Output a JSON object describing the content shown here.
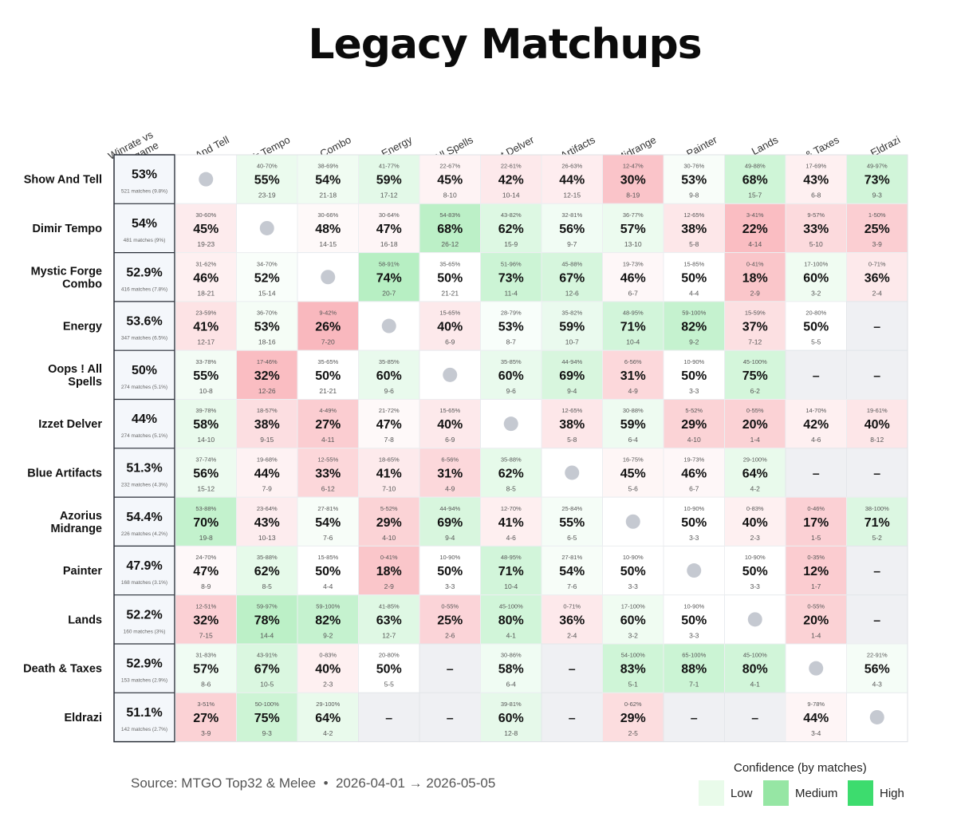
{
  "title": "Legacy Matchups",
  "source": "Source: MTGO Top32 & Melee  •  2026-04-01 → 2026-05-05",
  "legend": {
    "title": "Confidence (by matches)",
    "items": [
      {
        "label": "Low",
        "color": "#e9fbea"
      },
      {
        "label": "Medium",
        "color": "#96e6a4"
      },
      {
        "label": "High",
        "color": "#3ddc6e"
      }
    ]
  },
  "chart_data": {
    "type": "heatmap",
    "first_column_header": "Winrate vs Metagame",
    "columns": [
      "Show And Tell",
      "Dimir Tempo",
      "Mystic Forge Combo",
      "Energy",
      "Oops ! All Spells",
      "Izzet Delver",
      "Blue Artifacts",
      "Azorius Midrange",
      "Painter",
      "Lands",
      "Death & Taxes",
      "Eldrazi"
    ],
    "rows": [
      {
        "name": "Show And Tell",
        "winrate": "53%",
        "matches": "521 matches (9.8%)",
        "cells": [
          null,
          {
            "ci": "40-70%",
            "wr": "55%",
            "rec": "23-19"
          },
          {
            "ci": "38-69%",
            "wr": "54%",
            "rec": "21-18"
          },
          {
            "ci": "41-77%",
            "wr": "59%",
            "rec": "17-12"
          },
          {
            "ci": "22-67%",
            "wr": "45%",
            "rec": "8-10"
          },
          {
            "ci": "22-61%",
            "wr": "42%",
            "rec": "10-14"
          },
          {
            "ci": "26-63%",
            "wr": "44%",
            "rec": "12-15"
          },
          {
            "ci": "12-47%",
            "wr": "30%",
            "rec": "8-19"
          },
          {
            "ci": "30-76%",
            "wr": "53%",
            "rec": "9-8"
          },
          {
            "ci": "49-88%",
            "wr": "68%",
            "rec": "15-7"
          },
          {
            "ci": "17-69%",
            "wr": "43%",
            "rec": "6-8"
          },
          {
            "ci": "49-97%",
            "wr": "73%",
            "rec": "9-3"
          }
        ]
      },
      {
        "name": "Dimir Tempo",
        "winrate": "54%",
        "matches": "481 matches (9%)",
        "cells": [
          {
            "ci": "30-60%",
            "wr": "45%",
            "rec": "19-23"
          },
          null,
          {
            "ci": "30-66%",
            "wr": "48%",
            "rec": "14-15"
          },
          {
            "ci": "30-64%",
            "wr": "47%",
            "rec": "16-18"
          },
          {
            "ci": "54-83%",
            "wr": "68%",
            "rec": "26-12"
          },
          {
            "ci": "43-82%",
            "wr": "62%",
            "rec": "15-9"
          },
          {
            "ci": "32-81%",
            "wr": "56%",
            "rec": "9-7"
          },
          {
            "ci": "36-77%",
            "wr": "57%",
            "rec": "13-10"
          },
          {
            "ci": "12-65%",
            "wr": "38%",
            "rec": "5-8"
          },
          {
            "ci": "3-41%",
            "wr": "22%",
            "rec": "4-14"
          },
          {
            "ci": "9-57%",
            "wr": "33%",
            "rec": "5-10"
          },
          {
            "ci": "1-50%",
            "wr": "25%",
            "rec": "3-9"
          }
        ]
      },
      {
        "name": "Mystic Forge Combo",
        "winrate": "52.9%",
        "matches": "416 matches (7.8%)",
        "cells": [
          {
            "ci": "31-62%",
            "wr": "46%",
            "rec": "18-21"
          },
          {
            "ci": "34-70%",
            "wr": "52%",
            "rec": "15-14"
          },
          null,
          {
            "ci": "58-91%",
            "wr": "74%",
            "rec": "20-7"
          },
          {
            "ci": "35-65%",
            "wr": "50%",
            "rec": "21-21"
          },
          {
            "ci": "51-96%",
            "wr": "73%",
            "rec": "11-4"
          },
          {
            "ci": "45-88%",
            "wr": "67%",
            "rec": "12-6"
          },
          {
            "ci": "19-73%",
            "wr": "46%",
            "rec": "6-7"
          },
          {
            "ci": "15-85%",
            "wr": "50%",
            "rec": "4-4"
          },
          {
            "ci": "0-41%",
            "wr": "18%",
            "rec": "2-9"
          },
          {
            "ci": "17-100%",
            "wr": "60%",
            "rec": "3-2"
          },
          {
            "ci": "0-71%",
            "wr": "36%",
            "rec": "2-4"
          }
        ]
      },
      {
        "name": "Energy",
        "winrate": "53.6%",
        "matches": "347 matches (6.5%)",
        "cells": [
          {
            "ci": "23-59%",
            "wr": "41%",
            "rec": "12-17"
          },
          {
            "ci": "36-70%",
            "wr": "53%",
            "rec": "18-16"
          },
          {
            "ci": "9-42%",
            "wr": "26%",
            "rec": "7-20"
          },
          null,
          {
            "ci": "15-65%",
            "wr": "40%",
            "rec": "6-9"
          },
          {
            "ci": "28-79%",
            "wr": "53%",
            "rec": "8-7"
          },
          {
            "ci": "35-82%",
            "wr": "59%",
            "rec": "10-7"
          },
          {
            "ci": "48-95%",
            "wr": "71%",
            "rec": "10-4"
          },
          {
            "ci": "59-100%",
            "wr": "82%",
            "rec": "9-2"
          },
          {
            "ci": "15-59%",
            "wr": "37%",
            "rec": "7-12"
          },
          {
            "ci": "20-80%",
            "wr": "50%",
            "rec": "5-5"
          },
          "na"
        ]
      },
      {
        "name": "Oops ! All Spells",
        "winrate": "50%",
        "matches": "274 matches (5.1%)",
        "cells": [
          {
            "ci": "33-78%",
            "wr": "55%",
            "rec": "10-8"
          },
          {
            "ci": "17-46%",
            "wr": "32%",
            "rec": "12-26"
          },
          {
            "ci": "35-65%",
            "wr": "50%",
            "rec": "21-21"
          },
          {
            "ci": "35-85%",
            "wr": "60%",
            "rec": "9-6"
          },
          null,
          {
            "ci": "35-85%",
            "wr": "60%",
            "rec": "9-6"
          },
          {
            "ci": "44-94%",
            "wr": "69%",
            "rec": "9-4"
          },
          {
            "ci": "6-56%",
            "wr": "31%",
            "rec": "4-9"
          },
          {
            "ci": "10-90%",
            "wr": "50%",
            "rec": "3-3"
          },
          {
            "ci": "45-100%",
            "wr": "75%",
            "rec": "6-2"
          },
          "na",
          "na"
        ]
      },
      {
        "name": "Izzet Delver",
        "winrate": "44%",
        "matches": "274 matches (5.1%)",
        "cells": [
          {
            "ci": "39-78%",
            "wr": "58%",
            "rec": "14-10"
          },
          {
            "ci": "18-57%",
            "wr": "38%",
            "rec": "9-15"
          },
          {
            "ci": "4-49%",
            "wr": "27%",
            "rec": "4-11"
          },
          {
            "ci": "21-72%",
            "wr": "47%",
            "rec": "7-8"
          },
          {
            "ci": "15-65%",
            "wr": "40%",
            "rec": "6-9"
          },
          null,
          {
            "ci": "12-65%",
            "wr": "38%",
            "rec": "5-8"
          },
          {
            "ci": "30-88%",
            "wr": "59%",
            "rec": "6-4"
          },
          {
            "ci": "5-52%",
            "wr": "29%",
            "rec": "4-10"
          },
          {
            "ci": "0-55%",
            "wr": "20%",
            "rec": "1-4"
          },
          {
            "ci": "14-70%",
            "wr": "42%",
            "rec": "4-6"
          },
          {
            "ci": "19-61%",
            "wr": "40%",
            "rec": "8-12"
          }
        ]
      },
      {
        "name": "Blue Artifacts",
        "winrate": "51.3%",
        "matches": "232 matches (4.3%)",
        "cells": [
          {
            "ci": "37-74%",
            "wr": "56%",
            "rec": "15-12"
          },
          {
            "ci": "19-68%",
            "wr": "44%",
            "rec": "7-9"
          },
          {
            "ci": "12-55%",
            "wr": "33%",
            "rec": "6-12"
          },
          {
            "ci": "18-65%",
            "wr": "41%",
            "rec": "7-10"
          },
          {
            "ci": "6-56%",
            "wr": "31%",
            "rec": "4-9"
          },
          {
            "ci": "35-88%",
            "wr": "62%",
            "rec": "8-5"
          },
          null,
          {
            "ci": "16-75%",
            "wr": "45%",
            "rec": "5-6"
          },
          {
            "ci": "19-73%",
            "wr": "46%",
            "rec": "6-7"
          },
          {
            "ci": "29-100%",
            "wr": "64%",
            "rec": "4-2"
          },
          "na",
          "na"
        ]
      },
      {
        "name": "Azorius Midrange",
        "winrate": "54.4%",
        "matches": "226 matches (4.2%)",
        "cells": [
          {
            "ci": "53-88%",
            "wr": "70%",
            "rec": "19-8"
          },
          {
            "ci": "23-64%",
            "wr": "43%",
            "rec": "10-13"
          },
          {
            "ci": "27-81%",
            "wr": "54%",
            "rec": "7-6"
          },
          {
            "ci": "5-52%",
            "wr": "29%",
            "rec": "4-10"
          },
          {
            "ci": "44-94%",
            "wr": "69%",
            "rec": "9-4"
          },
          {
            "ci": "12-70%",
            "wr": "41%",
            "rec": "4-6"
          },
          {
            "ci": "25-84%",
            "wr": "55%",
            "rec": "6-5"
          },
          null,
          {
            "ci": "10-90%",
            "wr": "50%",
            "rec": "3-3"
          },
          {
            "ci": "0-83%",
            "wr": "40%",
            "rec": "2-3"
          },
          {
            "ci": "0-46%",
            "wr": "17%",
            "rec": "1-5"
          },
          {
            "ci": "38-100%",
            "wr": "71%",
            "rec": "5-2"
          }
        ]
      },
      {
        "name": "Painter",
        "winrate": "47.9%",
        "matches": "168 matches (3.1%)",
        "cells": [
          {
            "ci": "24-70%",
            "wr": "47%",
            "rec": "8-9"
          },
          {
            "ci": "35-88%",
            "wr": "62%",
            "rec": "8-5"
          },
          {
            "ci": "15-85%",
            "wr": "50%",
            "rec": "4-4"
          },
          {
            "ci": "0-41%",
            "wr": "18%",
            "rec": "2-9"
          },
          {
            "ci": "10-90%",
            "wr": "50%",
            "rec": "3-3"
          },
          {
            "ci": "48-95%",
            "wr": "71%",
            "rec": "10-4"
          },
          {
            "ci": "27-81%",
            "wr": "54%",
            "rec": "7-6"
          },
          {
            "ci": "10-90%",
            "wr": "50%",
            "rec": "3-3"
          },
          null,
          {
            "ci": "10-90%",
            "wr": "50%",
            "rec": "3-3"
          },
          {
            "ci": "0-35%",
            "wr": "12%",
            "rec": "1-7"
          },
          "na"
        ]
      },
      {
        "name": "Lands",
        "winrate": "52.2%",
        "matches": "160 matches (3%)",
        "cells": [
          {
            "ci": "12-51%",
            "wr": "32%",
            "rec": "7-15"
          },
          {
            "ci": "59-97%",
            "wr": "78%",
            "rec": "14-4"
          },
          {
            "ci": "59-100%",
            "wr": "82%",
            "rec": "9-2"
          },
          {
            "ci": "41-85%",
            "wr": "63%",
            "rec": "12-7"
          },
          {
            "ci": "0-55%",
            "wr": "25%",
            "rec": "2-6"
          },
          {
            "ci": "45-100%",
            "wr": "80%",
            "rec": "4-1"
          },
          {
            "ci": "0-71%",
            "wr": "36%",
            "rec": "2-4"
          },
          {
            "ci": "17-100%",
            "wr": "60%",
            "rec": "3-2"
          },
          {
            "ci": "10-90%",
            "wr": "50%",
            "rec": "3-3"
          },
          null,
          {
            "ci": "0-55%",
            "wr": "20%",
            "rec": "1-4"
          },
          "na"
        ]
      },
      {
        "name": "Death & Taxes",
        "winrate": "52.9%",
        "matches": "153 matches (2.9%)",
        "cells": [
          {
            "ci": "31-83%",
            "wr": "57%",
            "rec": "8-6"
          },
          {
            "ci": "43-91%",
            "wr": "67%",
            "rec": "10-5"
          },
          {
            "ci": "0-83%",
            "wr": "40%",
            "rec": "2-3"
          },
          {
            "ci": "20-80%",
            "wr": "50%",
            "rec": "5-5"
          },
          "na",
          {
            "ci": "30-86%",
            "wr": "58%",
            "rec": "6-4"
          },
          "na",
          {
            "ci": "54-100%",
            "wr": "83%",
            "rec": "5-1"
          },
          {
            "ci": "65-100%",
            "wr": "88%",
            "rec": "7-1"
          },
          {
            "ci": "45-100%",
            "wr": "80%",
            "rec": "4-1"
          },
          null,
          {
            "ci": "22-91%",
            "wr": "56%",
            "rec": "4-3"
          }
        ]
      },
      {
        "name": "Eldrazi",
        "winrate": "51.1%",
        "matches": "142 matches (2.7%)",
        "cells": [
          {
            "ci": "3-51%",
            "wr": "27%",
            "rec": "3-9"
          },
          {
            "ci": "50-100%",
            "wr": "75%",
            "rec": "9-3"
          },
          {
            "ci": "29-100%",
            "wr": "64%",
            "rec": "4-2"
          },
          "na",
          "na",
          {
            "ci": "39-81%",
            "wr": "60%",
            "rec": "12-8"
          },
          "na",
          {
            "ci": "0-62%",
            "wr": "29%",
            "rec": "2-5"
          },
          "na",
          "na",
          {
            "ci": "9-78%",
            "wr": "44%",
            "rec": "3-4"
          },
          null
        ]
      }
    ],
    "na_label": "–"
  }
}
